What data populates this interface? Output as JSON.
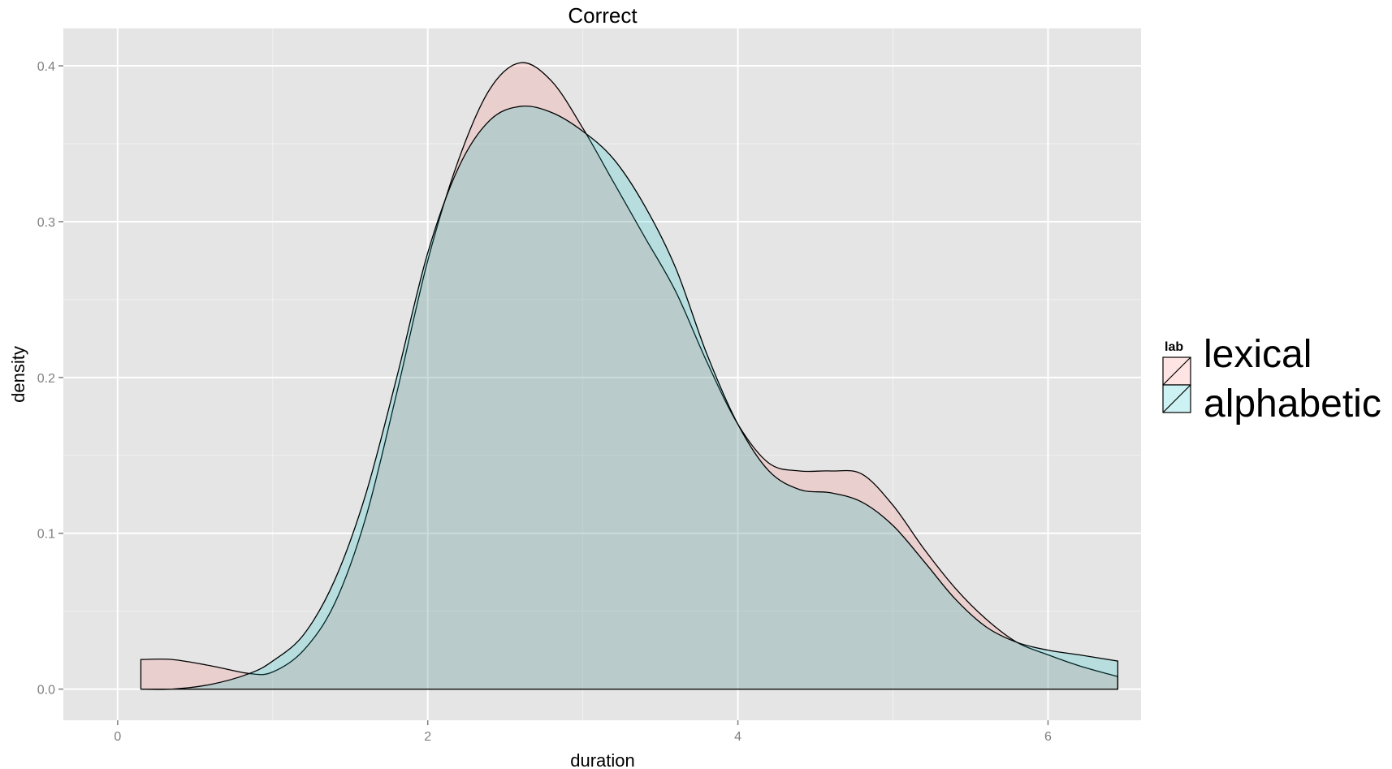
{
  "chart_data": {
    "type": "area",
    "subtype": "density",
    "title": "Correct",
    "xlabel": "duration",
    "ylabel": "density",
    "xlim": [
      -0.35,
      6.6
    ],
    "ylim": [
      -0.02,
      0.424
    ],
    "x_ticks": [
      0,
      2,
      4,
      6
    ],
    "x_tick_labels": [
      "0",
      "2",
      "4",
      "6"
    ],
    "y_ticks": [
      0.0,
      0.1,
      0.2,
      0.3,
      0.4
    ],
    "y_tick_labels": [
      "0.0",
      "0.1",
      "0.2",
      "0.3",
      "0.4"
    ],
    "grid": true,
    "legend": {
      "title": "lab",
      "position": "right",
      "entries": [
        "lexical",
        "alphabetic"
      ]
    },
    "series": [
      {
        "name": "lexical",
        "color": "#F8766D",
        "fill_opacity": 0.2,
        "x": [
          0.15,
          0.35,
          0.6,
          0.85,
          1.0,
          1.2,
          1.4,
          1.6,
          1.8,
          2.0,
          2.2,
          2.4,
          2.6,
          2.8,
          3.0,
          3.2,
          3.4,
          3.6,
          3.8,
          4.0,
          4.2,
          4.4,
          4.6,
          4.8,
          5.0,
          5.2,
          5.4,
          5.6,
          5.8,
          6.0,
          6.2,
          6.45
        ],
        "y": [
          0.019,
          0.019,
          0.015,
          0.01,
          0.011,
          0.025,
          0.055,
          0.11,
          0.19,
          0.275,
          0.34,
          0.385,
          0.402,
          0.39,
          0.36,
          0.325,
          0.29,
          0.255,
          0.21,
          0.17,
          0.145,
          0.14,
          0.14,
          0.138,
          0.118,
          0.09,
          0.065,
          0.045,
          0.03,
          0.022,
          0.015,
          0.008
        ]
      },
      {
        "name": "alphabetic",
        "color": "#00BFC4",
        "fill_opacity": 0.2,
        "x": [
          0.15,
          0.35,
          0.6,
          0.85,
          1.0,
          1.2,
          1.4,
          1.6,
          1.8,
          2.0,
          2.2,
          2.4,
          2.6,
          2.8,
          3.0,
          3.2,
          3.4,
          3.6,
          3.8,
          4.0,
          4.2,
          4.4,
          4.6,
          4.8,
          5.0,
          5.2,
          5.4,
          5.6,
          5.8,
          6.0,
          6.2,
          6.45
        ],
        "y": [
          0.0,
          0.0,
          0.003,
          0.01,
          0.018,
          0.035,
          0.07,
          0.125,
          0.2,
          0.28,
          0.335,
          0.365,
          0.374,
          0.37,
          0.358,
          0.34,
          0.31,
          0.27,
          0.215,
          0.17,
          0.14,
          0.128,
          0.126,
          0.12,
          0.105,
          0.082,
          0.058,
          0.04,
          0.03,
          0.025,
          0.022,
          0.018
        ]
      }
    ]
  }
}
